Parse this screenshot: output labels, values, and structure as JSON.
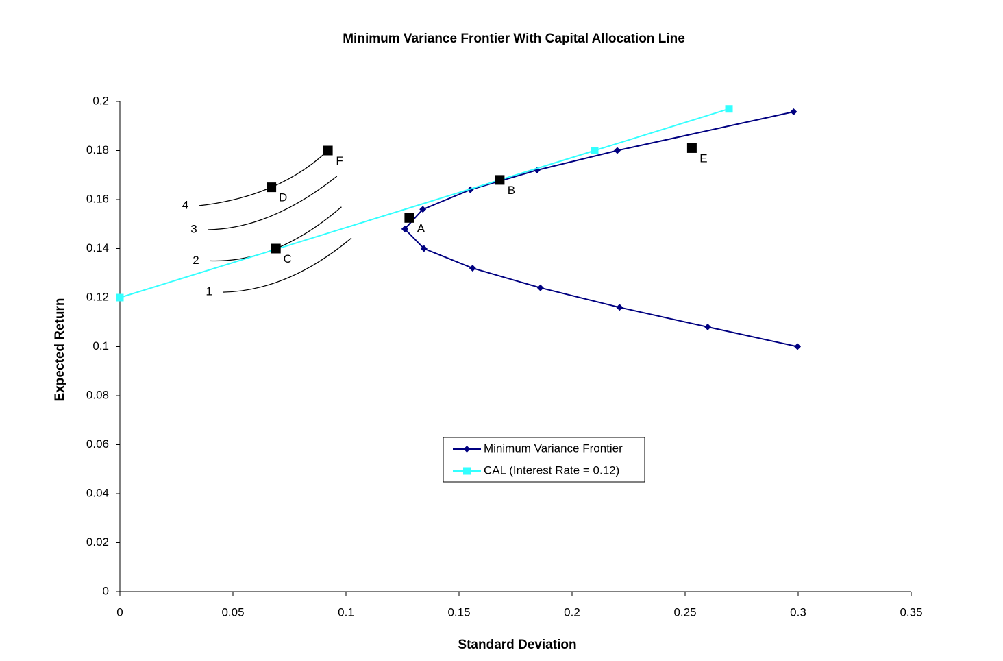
{
  "chart_data": {
    "type": "line",
    "title": "Minimum Variance Frontier With Capital Allocation Line",
    "x_label": "Standard Deviation",
    "y_label": "Expected Return",
    "xlim": [
      0,
      0.35
    ],
    "xticks": [
      0,
      0.05,
      0.1,
      0.15,
      0.2,
      0.25,
      0.3,
      0.35
    ],
    "ylim": [
      0,
      0.2
    ],
    "yticks": [
      0,
      0.02,
      0.04,
      0.06,
      0.08,
      0.1,
      0.12,
      0.14,
      0.16,
      0.18,
      0.2
    ],
    "grid": false,
    "legend_position": "center",
    "series": [
      {
        "name": "Minimum Variance Frontier",
        "color": "#000080",
        "marker": "diamond",
        "x": [
          0.298,
          0.22,
          0.1845,
          0.155,
          0.134,
          0.126,
          0.1345,
          0.156,
          0.186,
          0.221,
          0.26,
          0.2997
        ],
        "values": [
          0.1958,
          0.18,
          0.172,
          0.164,
          0.156,
          0.148,
          0.14,
          0.132,
          0.124,
          0.116,
          0.108,
          0.1
        ]
      },
      {
        "name": "CAL (Interest Rate = 0.12)",
        "color": "#33ffff",
        "marker": "square",
        "x": [
          0,
          0.21,
          0.2694
        ],
        "values": [
          0.12,
          0.18,
          0.197
        ]
      }
    ],
    "curves": [
      {
        "label": "1",
        "color": "#000000",
        "x": [
          0.0455,
          0.0742,
          0.1024
        ],
        "values": [
          0.1222,
          0.128,
          0.1443
        ]
      },
      {
        "label": "2",
        "color": "#000000",
        "x": [
          0.0397,
          0.069,
          0.098
        ],
        "values": [
          0.135,
          0.14,
          0.157
        ]
      },
      {
        "label": "3",
        "color": "#000000",
        "x": [
          0.0388,
          0.067,
          0.096
        ],
        "values": [
          0.1477,
          0.1533,
          0.1695
        ]
      },
      {
        "label": "4",
        "color": "#000000",
        "x": [
          0.035,
          0.067,
          0.092
        ],
        "values": [
          0.1575,
          0.165,
          0.18
        ]
      }
    ],
    "points": [
      {
        "label": "A",
        "x": 0.128,
        "value": 0.1525
      },
      {
        "label": "B",
        "x": 0.168,
        "value": 0.168
      },
      {
        "label": "C",
        "x": 0.069,
        "value": 0.14
      },
      {
        "label": "D",
        "x": 0.067,
        "value": 0.165
      },
      {
        "label": "E",
        "x": 0.253,
        "value": 0.181
      },
      {
        "label": "F",
        "x": 0.092,
        "value": 0.18
      }
    ],
    "point_color": "#000000"
  }
}
